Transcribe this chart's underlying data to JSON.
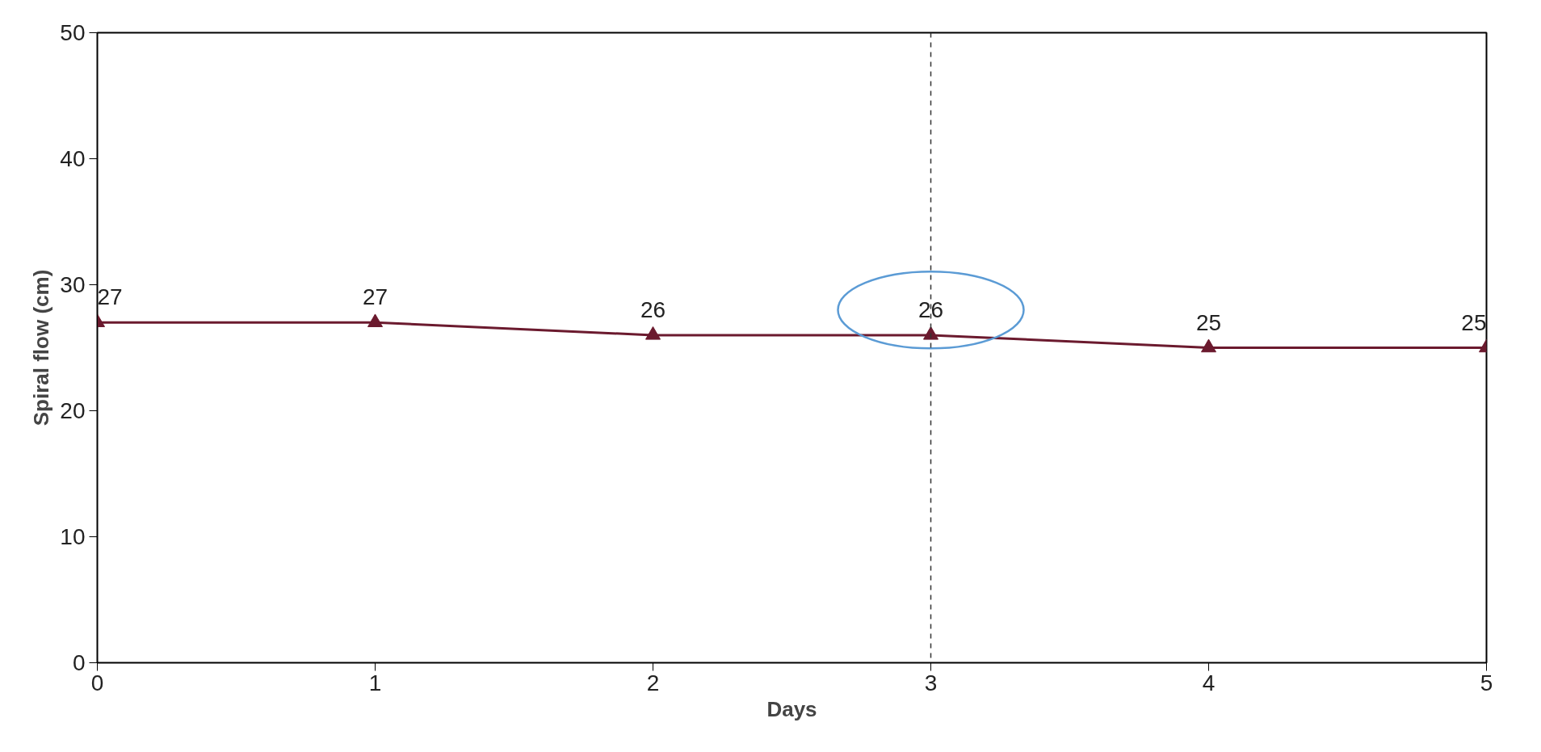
{
  "chart_data": {
    "type": "line",
    "xlabel": "Days",
    "ylabel": "Spiral flow (cm)",
    "x": [
      0,
      1,
      2,
      3,
      4,
      5
    ],
    "series": [
      {
        "color": "#6b1a2e",
        "values": [
          27,
          27,
          26,
          26,
          25,
          25
        ]
      }
    ],
    "xlim": [
      0,
      5
    ],
    "ylim": [
      0,
      50
    ],
    "xticks": [
      0,
      1,
      2,
      3,
      4,
      5
    ],
    "yticks": [
      0,
      10,
      20,
      30,
      40,
      50
    ],
    "grid": false,
    "marker": "triangle",
    "line_style": "solid",
    "data_labels": true,
    "ref_lines": [
      {
        "axis": "x",
        "value": 3,
        "label": null,
        "color": "#333333",
        "line_style": "dashed"
      }
    ]
  }
}
